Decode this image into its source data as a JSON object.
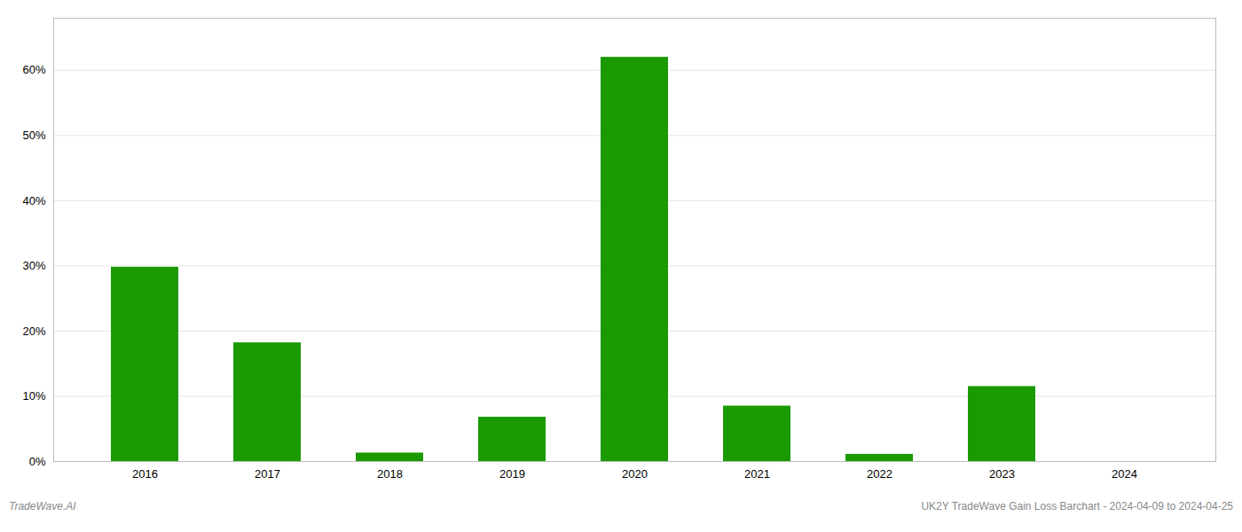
{
  "chart_data": {
    "type": "bar",
    "categories": [
      "2016",
      "2017",
      "2018",
      "2019",
      "2020",
      "2021",
      "2022",
      "2023",
      "2024"
    ],
    "values": [
      29.8,
      18.2,
      1.3,
      6.8,
      62.0,
      8.5,
      1.1,
      11.5,
      0.0
    ],
    "color": "#1a9a00",
    "ylim": [
      0,
      68
    ],
    "yticks": [
      {
        "value": 0,
        "label": "0%"
      },
      {
        "value": 10,
        "label": "10%"
      },
      {
        "value": 20,
        "label": "20%"
      },
      {
        "value": 30,
        "label": "30%"
      },
      {
        "value": 40,
        "label": "40%"
      },
      {
        "value": 50,
        "label": "50%"
      },
      {
        "value": 60,
        "label": "60%"
      }
    ],
    "grid": true,
    "annotations": [
      "TradeWave.AI",
      "UK2Y TradeWave Gain Loss Barchart - 2024-04-09 to 2024-04-25"
    ]
  }
}
